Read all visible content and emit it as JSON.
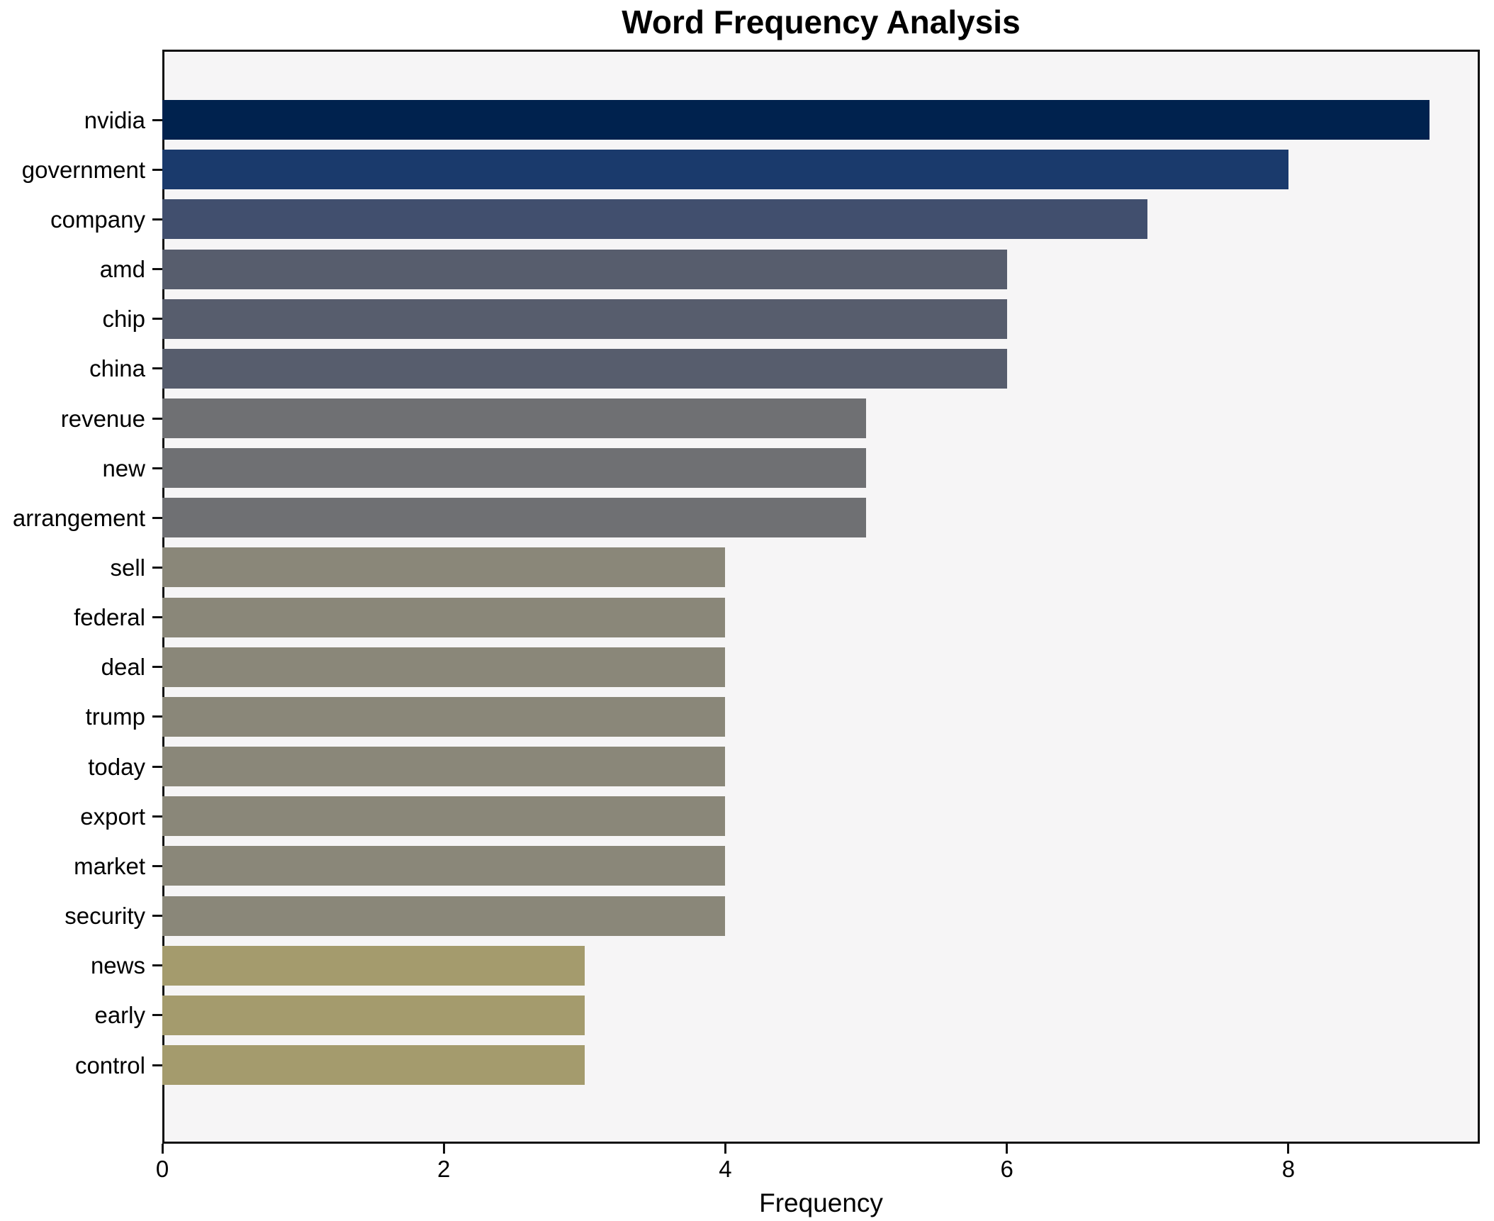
{
  "title": "Word Frequency Analysis",
  "chart_data": {
    "type": "bar",
    "orientation": "horizontal",
    "title": "Word Frequency Analysis",
    "xlabel": "Frequency",
    "ylabel": "",
    "categories": [
      "nvidia",
      "government",
      "company",
      "amd",
      "chip",
      "china",
      "revenue",
      "new",
      "arrangement",
      "sell",
      "federal",
      "deal",
      "trump",
      "today",
      "export",
      "market",
      "security",
      "news",
      "early",
      "control"
    ],
    "values": [
      9,
      8,
      7,
      6,
      6,
      6,
      5,
      5,
      5,
      4,
      4,
      4,
      4,
      4,
      4,
      4,
      4,
      3,
      3,
      3
    ],
    "bar_colors": [
      "#00224e",
      "#1a3a6c",
      "#414f6e",
      "#575d6d",
      "#575d6d",
      "#575d6d",
      "#6f7073",
      "#6f7073",
      "#6f7073",
      "#8a8779",
      "#8a8779",
      "#8a8779",
      "#8a8779",
      "#8a8779",
      "#8a8779",
      "#8a8779",
      "#8a8779",
      "#a49b6d",
      "#a49b6d",
      "#a49b6d"
    ],
    "xlim": [
      0,
      9.36
    ],
    "xticks": [
      0,
      2,
      4,
      6,
      8
    ],
    "grid": false,
    "legend": null,
    "plot_background": "#f6f5f6",
    "figure_background": "#ffffff",
    "spine_color": "#0f0f0f"
  }
}
